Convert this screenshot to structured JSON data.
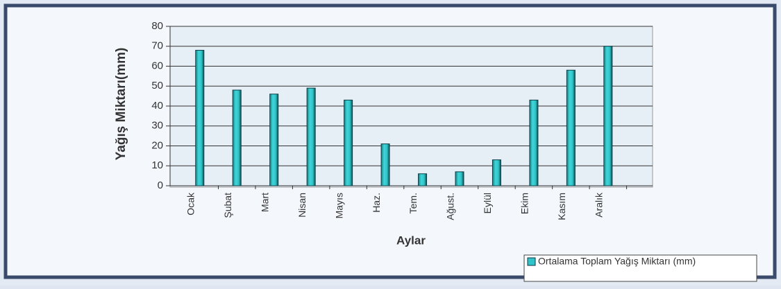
{
  "chart_data": {
    "type": "bar",
    "categories": [
      "Ocak",
      "Şubat",
      "Mart",
      "Nisan",
      "Mayıs",
      "Haz.",
      "Tem.",
      "Ağust.",
      "Eylül",
      "Ekim",
      "Kasım",
      "Aralık"
    ],
    "series": [
      {
        "name": "Ortalama Toplam Yağış Miktarı (mm)",
        "color": "#2fc4c8",
        "values": [
          68,
          48,
          46,
          49,
          43,
          21,
          6,
          7,
          13,
          43,
          58,
          70
        ]
      }
    ],
    "ylabel": "Yağış Miktarı(mm)",
    "xlabel": "Aylar",
    "ylim": [
      0,
      80
    ],
    "yticks": [
      0,
      10,
      20,
      30,
      40,
      50,
      60,
      70,
      80
    ],
    "grid": true,
    "legend": "bottom-right"
  }
}
